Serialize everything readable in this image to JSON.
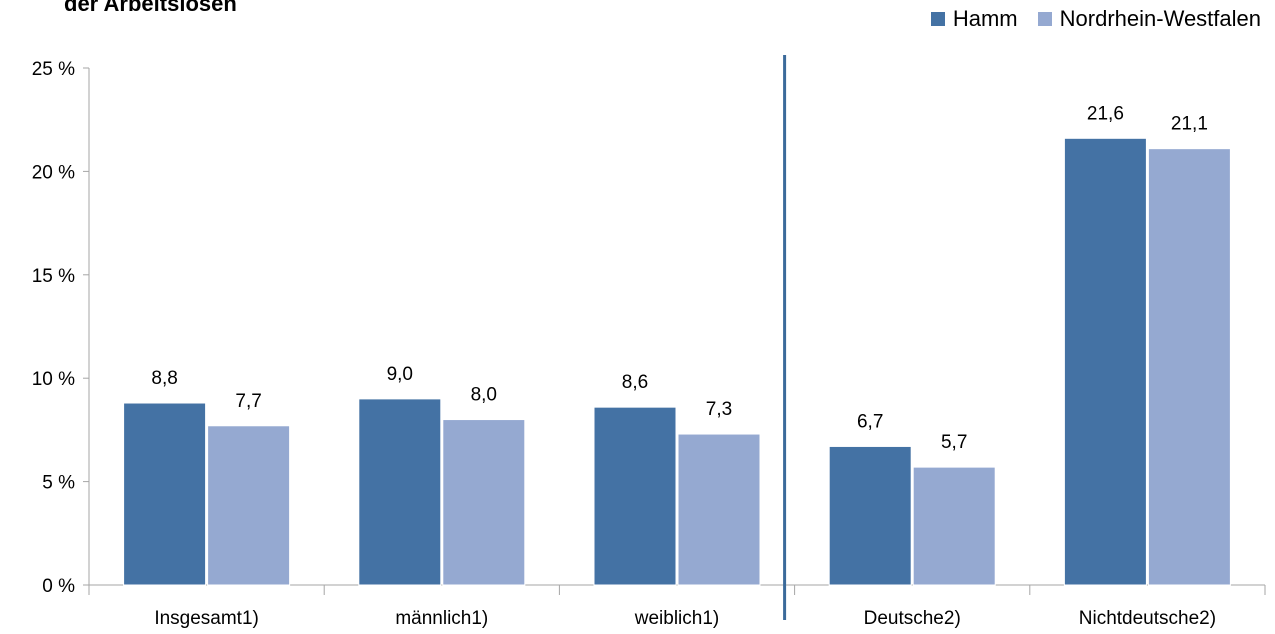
{
  "title": "der Arbeitslosen",
  "colors": {
    "hamm": "#4472A4",
    "nrw": "#95A9D1",
    "axis": "#A6A6A6",
    "divider": "#3B6A9A"
  },
  "chart_data": {
    "type": "bar",
    "title": "der Arbeitslosen",
    "xlabel": "",
    "ylabel": "",
    "categories": [
      "Insgesamt1)",
      "männlich1)",
      "weiblich1)",
      "Deutsche2)",
      "Nichtdeutsche2)"
    ],
    "series": [
      {
        "name": "Hamm",
        "values": [
          8.8,
          9.0,
          8.6,
          6.7,
          21.6
        ],
        "labels": [
          "8,8",
          "9,0",
          "8,6",
          "6,7",
          "21,6"
        ]
      },
      {
        "name": "Nordrhein-Westfalen",
        "values": [
          7.7,
          8.0,
          7.3,
          5.7,
          21.1
        ],
        "labels": [
          "7,7",
          "8,0",
          "7,3",
          "5,7",
          "21,1"
        ]
      }
    ],
    "ylim": [
      0,
      25
    ],
    "yticks": [
      0,
      5,
      10,
      15,
      20,
      25
    ],
    "ytick_labels": [
      "0 %",
      "5 %",
      "10 %",
      "15 %",
      "20 %",
      "25 %"
    ],
    "grid": false,
    "legend_position": "top-right",
    "divider_after_category": 3
  }
}
